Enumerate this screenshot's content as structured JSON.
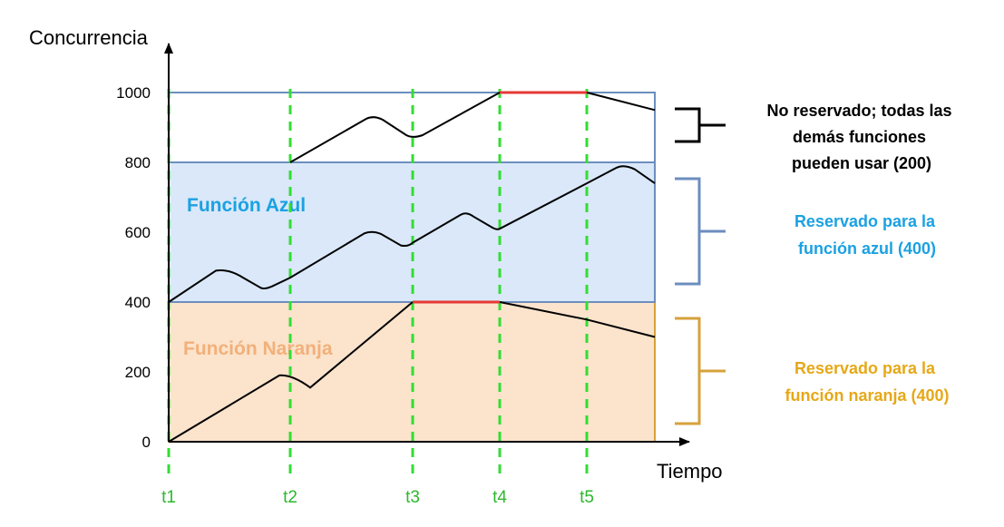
{
  "axes": {
    "y_title": "Concurrencia",
    "x_title": "Tiempo",
    "y_ticks": [
      0,
      200,
      400,
      600,
      800,
      1000
    ],
    "time_markers": [
      "t1",
      "t2",
      "t3",
      "t4",
      "t5"
    ]
  },
  "zones": {
    "orange_label": "Función Naranja",
    "blue_label": "Función Azul"
  },
  "annotations": {
    "unreserved": [
      "No reservado; todas las",
      "demás funciones",
      "pueden usar (200)"
    ],
    "blue_reserved": [
      "Reservado para la",
      "función azul (400)"
    ],
    "orange_reserved": [
      "Reservado para la",
      "función naranja (400)"
    ]
  },
  "colors": {
    "orange_fill": "#fbe3cc",
    "orange_border": "#d6a23b",
    "blue_fill": "#dae8f9",
    "blue_border": "#6c8ebf",
    "unreserved_border": "#6c8ebf",
    "blue_text": "#1ba1e2",
    "orange_text": "#f2b07a",
    "orange_annot": "#e6a817",
    "limit_line": "#e53935",
    "marker_line": "#33dd33",
    "marker_text": "#2db82d"
  },
  "chart_data": {
    "type": "line",
    "ylim": [
      0,
      1000
    ],
    "time_markers": [
      "t1",
      "t2",
      "t3",
      "t4",
      "t5"
    ],
    "reserved_bands": [
      {
        "name": "Función Naranja",
        "from": 0,
        "to": 400
      },
      {
        "name": "Función Azul",
        "from": 400,
        "to": 800
      },
      {
        "name": "No reservado",
        "from": 800,
        "to": 1000
      }
    ],
    "series": [
      {
        "values_at_markers": {
          "t1": 0,
          "t2": 180,
          "t3": 400,
          "t4": 400,
          "t5": 350
        },
        "end_value": 300
      },
      {
        "values_at_markers": {
          "t1": 400,
          "t2": 470,
          "t3": 570,
          "t4": 610,
          "t5": 740
        },
        "end_value": 740
      },
      {
        "values_at_markers": {
          "t2": 800,
          "t3": 870,
          "t4": 1000,
          "t5": 1000
        },
        "end_value": 950
      }
    ],
    "throttled_segments": [
      {
        "from": "t3",
        "to": "t4",
        "value": 400
      },
      {
        "from": "t4",
        "to": "t5",
        "value": 1000
      }
    ]
  }
}
